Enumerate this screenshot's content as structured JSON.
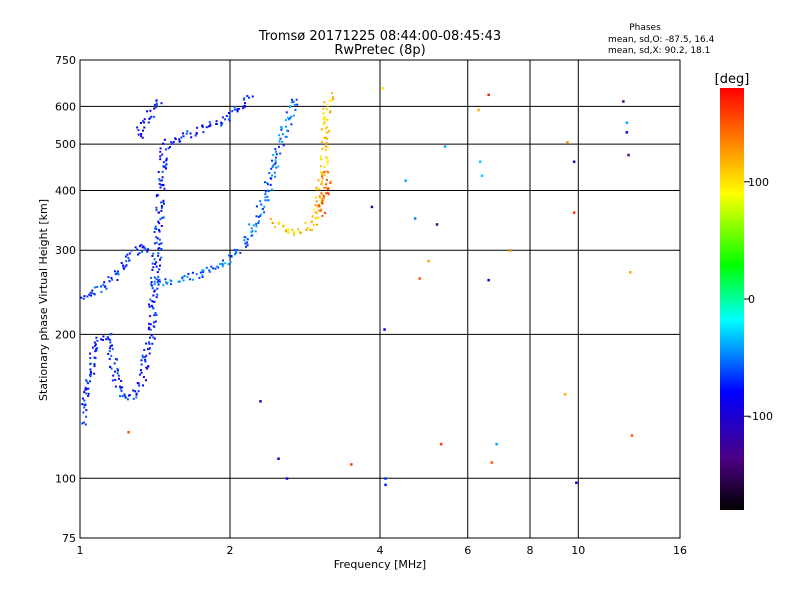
{
  "chart_data": {
    "type": "scatter",
    "title": "Tromsø 20171225 08:44:00-08:45:43",
    "subtitle": "RwPretec (8p)",
    "xlabel": "Frequency [MHz]",
    "ylabel": "Stationary phase Virtual Height [km]",
    "x_scale": "log",
    "y_scale": "log",
    "xlim": [
      1,
      16
    ],
    "ylim": [
      75,
      750
    ],
    "x_ticks": [
      1,
      2,
      4,
      6,
      8,
      10,
      16
    ],
    "x_tick_labels": [
      "1",
      "2",
      "4",
      "6",
      "8",
      "10",
      "16"
    ],
    "y_ticks": [
      75,
      100,
      200,
      300,
      400,
      500,
      600,
      750
    ],
    "y_tick_labels": [
      "75",
      "100",
      "200",
      "300",
      "400",
      "500",
      "600",
      "750"
    ],
    "grid": true,
    "colorbar": {
      "label": "[deg]",
      "range": [
        -180,
        180
      ],
      "ticks": [
        -100,
        0,
        100
      ],
      "tick_labels": [
        "-100",
        "0",
        "100"
      ],
      "colors": [
        "#000000",
        "#4b0082",
        "#0000ff",
        "#00ffff",
        "#00ff00",
        "#ffff00",
        "#ff0000"
      ]
    },
    "stats": {
      "heading": "Phases",
      "line_o": "mean, sd,O: -87.5, 16.4",
      "line_x": "mean, sd,X:  90.2, 18.1"
    },
    "traces": [
      {
        "points": [
          [
            1.0,
            130
          ],
          [
            1.02,
            142
          ],
          [
            1.04,
            165
          ],
          [
            1.06,
            185
          ],
          [
            1.1,
            198
          ],
          [
            1.14,
            200
          ],
          [
            1.18,
            160
          ],
          [
            1.22,
            148
          ],
          [
            1.28,
            150
          ],
          [
            1.33,
            162
          ],
          [
            1.38,
            200
          ],
          [
            1.4,
            240
          ],
          [
            1.42,
            300
          ],
          [
            1.44,
            350
          ],
          [
            1.45,
            400
          ],
          [
            1.46,
            450
          ],
          [
            1.48,
            500
          ],
          [
            1.52,
            510
          ],
          [
            1.6,
            520
          ],
          [
            1.7,
            535
          ],
          [
            1.85,
            550
          ],
          [
            2.0,
            580
          ],
          [
            2.1,
            600
          ],
          [
            2.2,
            640
          ]
        ],
        "phase": -95
      },
      {
        "points": [
          [
            1.0,
            240
          ],
          [
            1.05,
            245
          ],
          [
            1.1,
            250
          ],
          [
            1.15,
            260
          ],
          [
            1.2,
            275
          ],
          [
            1.25,
            295
          ],
          [
            1.32,
            305
          ],
          [
            1.4,
            300
          ]
        ],
        "phase": -90
      },
      {
        "points": [
          [
            1.4,
            260
          ],
          [
            1.5,
            258
          ],
          [
            1.6,
            262
          ],
          [
            1.7,
            266
          ],
          [
            1.8,
            272
          ],
          [
            1.9,
            280
          ],
          [
            2.0,
            292
          ],
          [
            2.1,
            305
          ],
          [
            2.2,
            330
          ],
          [
            2.3,
            370
          ],
          [
            2.4,
            420
          ],
          [
            2.5,
            490
          ],
          [
            2.6,
            560
          ],
          [
            2.7,
            630
          ]
        ],
        "phase": -75
      },
      {
        "points": [
          [
            1.3,
            520
          ],
          [
            1.35,
            560
          ],
          [
            1.4,
            600
          ],
          [
            1.45,
            620
          ]
        ],
        "phase": -100
      },
      {
        "points": [
          [
            2.45,
            350
          ],
          [
            2.55,
            335
          ],
          [
            2.65,
            328
          ],
          [
            2.75,
            328
          ],
          [
            2.85,
            335
          ],
          [
            2.95,
            350
          ],
          [
            3.0,
            380
          ],
          [
            3.05,
            420
          ],
          [
            3.08,
            480
          ],
          [
            3.1,
            530
          ],
          [
            3.12,
            580
          ],
          [
            3.15,
            640
          ]
        ],
        "phase": 110
      },
      {
        "points": [
          [
            3.02,
            360
          ],
          [
            3.06,
            375
          ],
          [
            3.08,
            390
          ],
          [
            3.1,
            410
          ],
          [
            3.12,
            440
          ]
        ],
        "phase": 150
      }
    ],
    "scatter": [
      {
        "x": 1.25,
        "y": 125,
        "phase": 150
      },
      {
        "x": 2.3,
        "y": 145,
        "phase": -120
      },
      {
        "x": 2.5,
        "y": 110,
        "phase": -110
      },
      {
        "x": 2.6,
        "y": 100,
        "phase": -105
      },
      {
        "x": 3.5,
        "y": 107,
        "phase": 160
      },
      {
        "x": 3.85,
        "y": 370,
        "phase": -130
      },
      {
        "x": 4.05,
        "y": 655,
        "phase": 100
      },
      {
        "x": 4.08,
        "y": 205,
        "phase": -110
      },
      {
        "x": 4.1,
        "y": 100,
        "phase": -90
      },
      {
        "x": 4.1,
        "y": 97,
        "phase": -95
      },
      {
        "x": 4.5,
        "y": 420,
        "phase": -60
      },
      {
        "x": 4.7,
        "y": 350,
        "phase": -70
      },
      {
        "x": 4.8,
        "y": 262,
        "phase": 150
      },
      {
        "x": 5.0,
        "y": 285,
        "phase": 120
      },
      {
        "x": 5.2,
        "y": 340,
        "phase": -140
      },
      {
        "x": 5.3,
        "y": 118,
        "phase": 160
      },
      {
        "x": 5.4,
        "y": 495,
        "phase": -60
      },
      {
        "x": 6.3,
        "y": 590,
        "phase": 120
      },
      {
        "x": 6.35,
        "y": 460,
        "phase": -50
      },
      {
        "x": 6.4,
        "y": 430,
        "phase": -50
      },
      {
        "x": 6.6,
        "y": 635,
        "phase": 170
      },
      {
        "x": 6.6,
        "y": 260,
        "phase": -110
      },
      {
        "x": 6.7,
        "y": 108,
        "phase": 150
      },
      {
        "x": 6.85,
        "y": 118,
        "phase": -60
      },
      {
        "x": 7.3,
        "y": 300,
        "phase": 130
      },
      {
        "x": 9.5,
        "y": 505,
        "phase": 130
      },
      {
        "x": 9.4,
        "y": 150,
        "phase": 120
      },
      {
        "x": 9.8,
        "y": 460,
        "phase": -130
      },
      {
        "x": 9.8,
        "y": 360,
        "phase": 160
      },
      {
        "x": 9.9,
        "y": 98,
        "phase": -110
      },
      {
        "x": 12.3,
        "y": 615,
        "phase": -140
      },
      {
        "x": 12.5,
        "y": 555,
        "phase": -60
      },
      {
        "x": 12.5,
        "y": 530,
        "phase": -100
      },
      {
        "x": 12.6,
        "y": 475,
        "phase": -140
      },
      {
        "x": 12.7,
        "y": 270,
        "phase": 120
      },
      {
        "x": 12.8,
        "y": 123,
        "phase": 150
      }
    ]
  }
}
